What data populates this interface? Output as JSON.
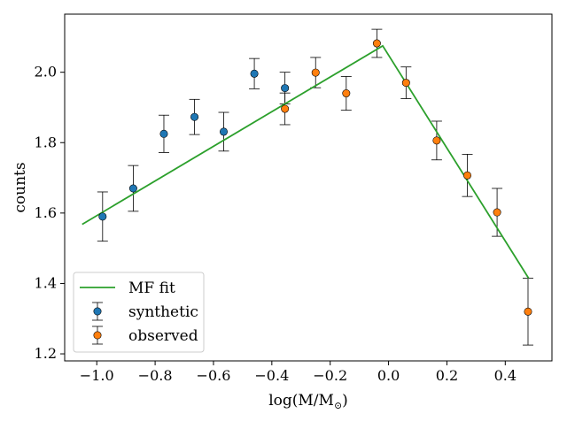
{
  "chart_data": {
    "type": "scatter",
    "title": "",
    "xlabel": "log(M/M",
    "xlabel_sub": "⊙",
    "xlabel_close": ")",
    "ylabel": "counts",
    "xlim": [
      -1.11,
      0.56
    ],
    "ylim": [
      1.18,
      2.165
    ],
    "x_ticks": [
      -1.0,
      -0.8,
      -0.6,
      -0.4,
      -0.2,
      0.0,
      0.2,
      0.4
    ],
    "x_tick_labels": [
      "−1.0",
      "−0.8",
      "−0.6",
      "−0.4",
      "−0.2",
      "0.0",
      "0.2",
      "0.4"
    ],
    "y_ticks": [
      1.2,
      1.4,
      1.6,
      1.8,
      2.0
    ],
    "y_tick_labels": [
      "1.2",
      "1.4",
      "1.6",
      "1.8",
      "2.0"
    ],
    "legend_position": "lower-left",
    "fit": {
      "name": "MF fit",
      "color": "#2ca02c",
      "x": [
        -1.05,
        -0.02,
        0.48
      ],
      "y": [
        1.568,
        2.075,
        1.415
      ]
    },
    "series": [
      {
        "name": "synthetic",
        "color": "#1f77b4",
        "x": [
          -0.98,
          -0.875,
          -0.77,
          -0.665,
          -0.565,
          -0.46,
          -0.355
        ],
        "y": [
          1.59,
          1.67,
          1.825,
          1.873,
          1.831,
          1.996,
          1.955
        ],
        "err": [
          0.07,
          0.065,
          0.053,
          0.05,
          0.055,
          0.043,
          0.045
        ]
      },
      {
        "name": "observed",
        "color": "#ff7f0e",
        "x": [
          -0.355,
          -0.25,
          -0.145,
          -0.04,
          0.06,
          0.165,
          0.27,
          0.372,
          0.478
        ],
        "y": [
          1.896,
          1.999,
          1.94,
          2.082,
          1.97,
          1.806,
          1.707,
          1.602,
          1.32
        ],
        "err": [
          0.045,
          0.043,
          0.048,
          0.04,
          0.045,
          0.055,
          0.06,
          0.068,
          0.095
        ]
      }
    ]
  }
}
